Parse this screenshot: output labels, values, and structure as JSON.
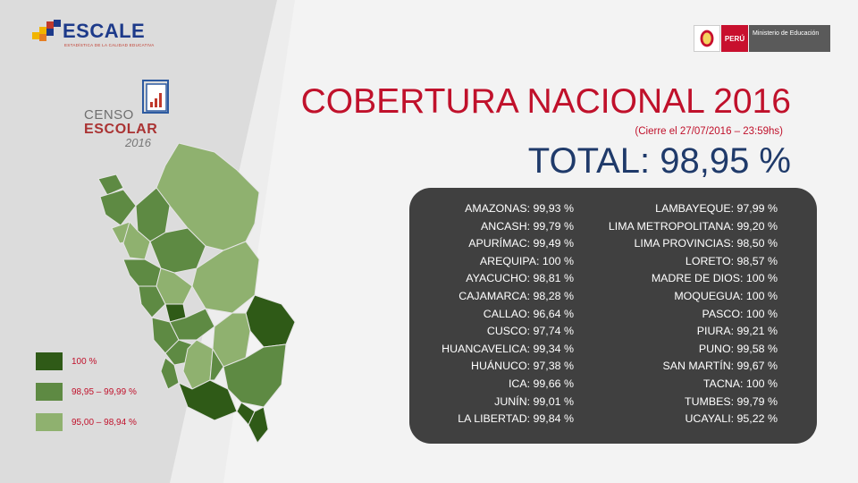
{
  "header": {
    "logo_text": "ESCALE",
    "logo_tagline": "ESTADÍSTICA DE LA CALIDAD EDUCATIVA",
    "gov_badge": "PERÚ",
    "gov_ministry": "Ministerio de Educación"
  },
  "censo": {
    "line1": "CENSO",
    "line2": "ESCOLAR",
    "line3": "2016"
  },
  "title": "COBERTURA NACIONAL 2016",
  "subtitle": "(Cierre el 27/07/2016 – 23:59hs)",
  "total": "TOTAL: 98,95 %",
  "regions_left": [
    "AMAZONAS: 99,93 %",
    "ANCASH: 99,79 %",
    "APURÍMAC: 99,49 %",
    "AREQUIPA: 100 %",
    "AYACUCHO: 98,81 %",
    "CAJAMARCA: 98,28 %",
    "CALLAO: 96,64 %",
    "CUSCO: 97,74 %",
    "HUANCAVELICA: 99,34 %",
    "HUÁNUCO: 97,38 %",
    "ICA: 99,66 %",
    "JUNÍN: 99,01 %",
    "LA LIBERTAD: 99,84 %"
  ],
  "regions_right": [
    "LAMBAYEQUE: 97,99 %",
    "LIMA METROPOLITANA: 99,20 %",
    "LIMA PROVINCIAS: 98,50 %",
    "LORETO: 98,57 %",
    "MADRE DE DIOS: 100 %",
    "MOQUEGUA: 100 %",
    "PASCO: 100 %",
    "PIURA: 99,21 %",
    "PUNO: 99,58 %",
    "SAN MARTÍN: 99,67 %",
    "TACNA: 100 %",
    "TUMBES: 99,79 %",
    "UCAYALI: 95,22 %"
  ],
  "legend": [
    {
      "label": "100 %",
      "color": "#2f5a17"
    },
    {
      "label": "98,95 – 99,99 %",
      "color": "#5e8a43"
    },
    {
      "label": "95,00 – 98,94 %",
      "color": "#8fb16f"
    }
  ],
  "colors": {
    "accent_red": "#c0112b",
    "total_blue": "#1f3a6a",
    "panel_bg": "#404040"
  }
}
